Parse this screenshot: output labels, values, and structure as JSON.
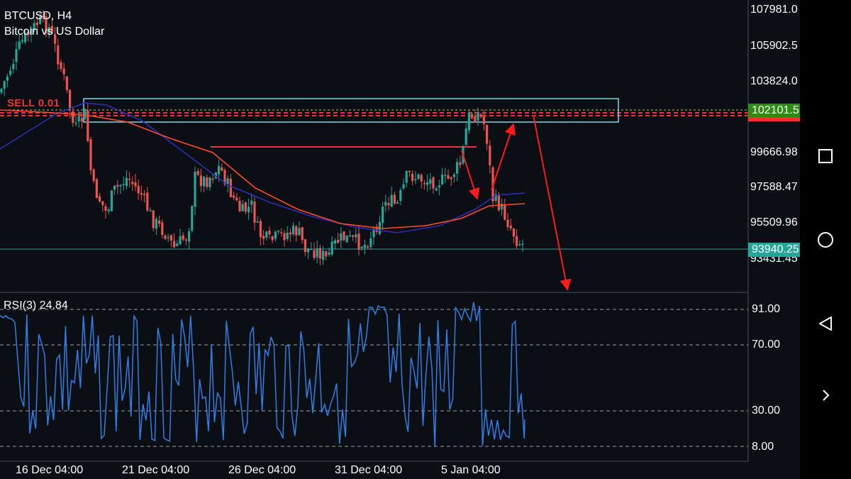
{
  "header": {
    "symbol": "BTCUSD, H4",
    "description": "Bitcoin vs US Dollar"
  },
  "order": {
    "label": "SELL 0.01"
  },
  "price_axis": {
    "ticks": [
      "107981.0",
      "105902.5",
      "103824.0",
      "99666.98",
      "97588.47",
      "95509.96",
      "93431.45"
    ],
    "bid_badge": "102101.5",
    "current_badge": "93940.25",
    "bid_color": "#2e8b13",
    "current_color": "#26a69a",
    "sell_color": "#ff3030"
  },
  "rsi": {
    "label": "RSI(3) 24.84",
    "ticks": [
      "91.00",
      "70.00",
      "30.00",
      "8.00"
    ],
    "line_color": "#2f7fe8"
  },
  "time_axis": {
    "ticks": [
      "16 Dec 04:00",
      "21 Dec 04:00",
      "26 Dec 04:00",
      "31 Dec 04:00",
      "5 Jan 04:00"
    ]
  },
  "colors": {
    "background": "#0b0e13",
    "bull_candle": "#26a69a",
    "bear_candle": "#ef5350",
    "ma_fast": "#2b2fb8",
    "ma_slow": "#ff4a2a",
    "zone": "#7fd4e6",
    "arrows": "#ff1a1a"
  },
  "nav": {
    "icons": [
      "square-icon",
      "circle-icon",
      "back-triangle-icon",
      "chevron-right-icon"
    ]
  }
}
